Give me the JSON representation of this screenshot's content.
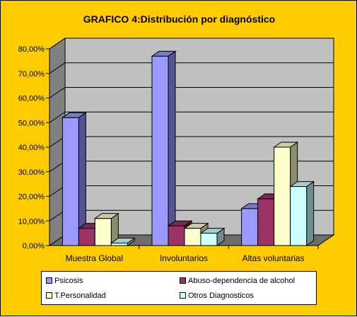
{
  "chart_data": {
    "type": "bar",
    "title": "GRAFICO 4:Distribución por diagnóstico",
    "categories": [
      "Muestra Global",
      "Involuntarios",
      "Altas voluntarias"
    ],
    "y_ticks": [
      "0,00%",
      "10,00%",
      "20,00%",
      "30,00%",
      "40,00%",
      "50,00%",
      "60,00%",
      "70,00%",
      "80,00%"
    ],
    "ylim": [
      0,
      80
    ],
    "grid": true,
    "legend_position": "bottom",
    "series": [
      {
        "name": "Psicosis",
        "values": [
          52,
          77,
          15
        ],
        "color": "#9999ff"
      },
      {
        "name": "Abuso-dependencia de alcohol",
        "values": [
          7,
          8,
          19
        ],
        "color": "#993366"
      },
      {
        "name": "T.Personalidad",
        "values": [
          11,
          7,
          40
        ],
        "color": "#ffffcc"
      },
      {
        "name": "Otros Diagnosticos",
        "values": [
          1,
          5,
          24
        ],
        "color": "#ccffff"
      }
    ]
  },
  "colors": {
    "background": "#ffcc00",
    "plot_wall": "#c0c0c0",
    "plot_floor": "#808080"
  }
}
